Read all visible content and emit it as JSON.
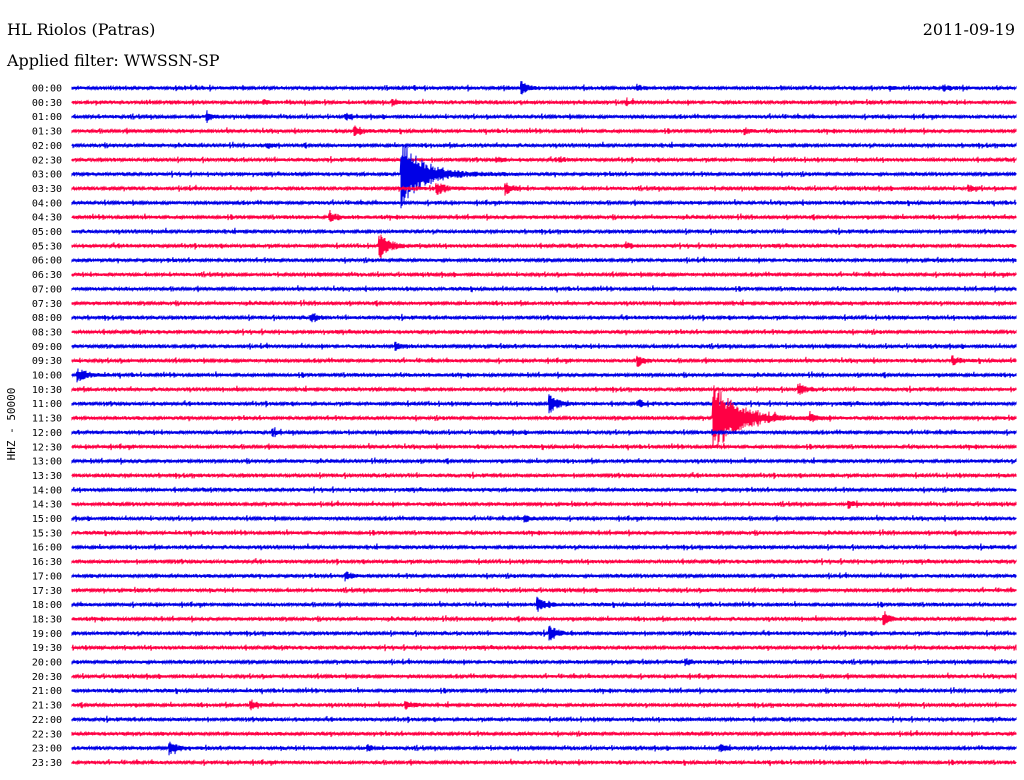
{
  "header": {
    "station": "HL Riolos (Patras)",
    "date": "2011-09-19",
    "filter": "Applied filter: WWSSN-SP"
  },
  "chart_data": {
    "type": "line",
    "title": "HL Riolos (Patras)",
    "subtitle": "Applied filter: WWSSN-SP",
    "date": "2011-09-19",
    "ylabel": "HHZ - 50000",
    "row_labels": [
      "00:00",
      "00:30",
      "01:00",
      "01:30",
      "02:00",
      "02:30",
      "03:00",
      "03:30",
      "04:00",
      "04:30",
      "05:00",
      "05:30",
      "06:00",
      "06:30",
      "07:00",
      "07:30",
      "08:00",
      "08:30",
      "09:00",
      "09:30",
      "10:00",
      "10:30",
      "11:00",
      "11:30",
      "12:00",
      "12:30",
      "13:00",
      "13:30",
      "14:00",
      "14:30",
      "15:00",
      "15:30",
      "16:00",
      "16:30",
      "17:00",
      "17:30",
      "18:00",
      "18:30",
      "19:00",
      "19:30",
      "20:00",
      "20:30",
      "21:00",
      "21:30",
      "22:00",
      "22:30",
      "23:00",
      "23:30"
    ],
    "row_colors": [
      "#0000e6",
      "#ff0044"
    ],
    "minutes_per_row": 30,
    "events": [
      {
        "row": 0,
        "minute": 14.3,
        "amplitude": 1.0
      },
      {
        "row": 0,
        "minute": 18.0,
        "amplitude": 0.4
      },
      {
        "row": 0,
        "minute": 26.0,
        "amplitude": 0.4
      },
      {
        "row": 0,
        "minute": 27.7,
        "amplitude": 0.6
      },
      {
        "row": 1,
        "minute": 6.1,
        "amplitude": 0.4
      },
      {
        "row": 1,
        "minute": 10.2,
        "amplitude": 0.6
      },
      {
        "row": 1,
        "minute": 17.6,
        "amplitude": 0.4
      },
      {
        "row": 2,
        "minute": 4.3,
        "amplitude": 0.7
      },
      {
        "row": 2,
        "minute": 8.7,
        "amplitude": 0.5
      },
      {
        "row": 3,
        "minute": 9.0,
        "amplitude": 0.9
      },
      {
        "row": 3,
        "minute": 21.4,
        "amplitude": 0.5
      },
      {
        "row": 4,
        "minute": 6.2,
        "amplitude": 0.5
      },
      {
        "row": 5,
        "minute": 13.5,
        "amplitude": 0.5
      },
      {
        "row": 5,
        "minute": 15.5,
        "amplitude": 0.4
      },
      {
        "row": 6,
        "minute": 10.5,
        "amplitude": 6.0
      },
      {
        "row": 7,
        "minute": 11.6,
        "amplitude": 1.2
      },
      {
        "row": 7,
        "minute": 13.8,
        "amplitude": 0.9
      },
      {
        "row": 7,
        "minute": 28.5,
        "amplitude": 0.6
      },
      {
        "row": 9,
        "minute": 8.2,
        "amplitude": 0.9
      },
      {
        "row": 11,
        "minute": 9.8,
        "amplitude": 2.0
      },
      {
        "row": 11,
        "minute": 17.6,
        "amplitude": 0.6
      },
      {
        "row": 16,
        "minute": 7.6,
        "amplitude": 0.8
      },
      {
        "row": 18,
        "minute": 10.3,
        "amplitude": 0.8
      },
      {
        "row": 19,
        "minute": 18.0,
        "amplitude": 0.9
      },
      {
        "row": 19,
        "minute": 28.0,
        "amplitude": 0.7
      },
      {
        "row": 20,
        "minute": 0.2,
        "amplitude": 1.2
      },
      {
        "row": 21,
        "minute": 23.1,
        "amplitude": 1.0
      },
      {
        "row": 22,
        "minute": 15.2,
        "amplitude": 1.5
      },
      {
        "row": 22,
        "minute": 18.0,
        "amplitude": 0.6
      },
      {
        "row": 23,
        "minute": 20.4,
        "amplitude": 6.5
      },
      {
        "row": 23,
        "minute": 23.5,
        "amplitude": 0.6
      },
      {
        "row": 24,
        "minute": 6.4,
        "amplitude": 0.5
      },
      {
        "row": 29,
        "minute": 24.7,
        "amplitude": 0.6
      },
      {
        "row": 30,
        "minute": 14.4,
        "amplitude": 0.6
      },
      {
        "row": 34,
        "minute": 8.7,
        "amplitude": 0.8
      },
      {
        "row": 36,
        "minute": 14.8,
        "amplitude": 1.2
      },
      {
        "row": 37,
        "minute": 25.8,
        "amplitude": 0.9
      },
      {
        "row": 38,
        "minute": 15.2,
        "amplitude": 1.2
      },
      {
        "row": 40,
        "minute": 19.5,
        "amplitude": 0.6
      },
      {
        "row": 43,
        "minute": 5.7,
        "amplitude": 0.8
      },
      {
        "row": 43,
        "minute": 10.6,
        "amplitude": 0.8
      },
      {
        "row": 46,
        "minute": 3.1,
        "amplitude": 1.2
      },
      {
        "row": 46,
        "minute": 9.4,
        "amplitude": 0.6
      },
      {
        "row": 46,
        "minute": 20.6,
        "amplitude": 0.7
      }
    ]
  }
}
